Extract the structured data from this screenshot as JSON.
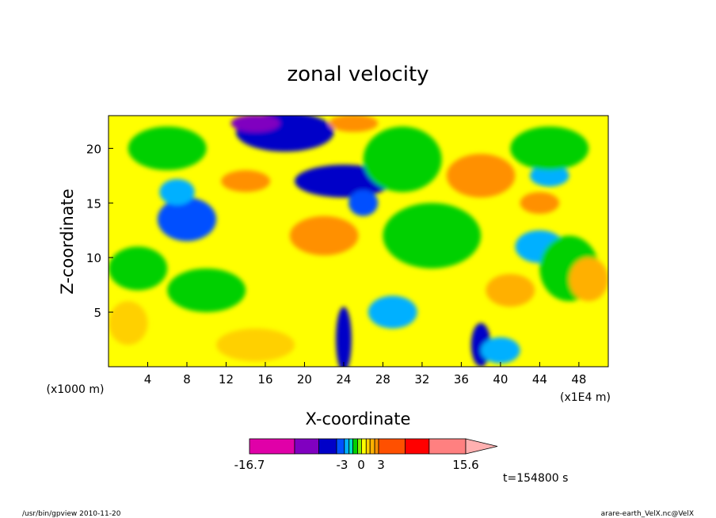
{
  "chart_data": {
    "type": "heatmap",
    "title": "zonal velocity",
    "xlabel": "X-coordinate",
    "ylabel": "Z-coordinate",
    "x_unit_label": "(x1E4 m)",
    "y_unit_label": "(x1000 m)",
    "x_ticks": [
      "4",
      "8",
      "12",
      "16",
      "20",
      "24",
      "28",
      "32",
      "36",
      "40",
      "44",
      "48"
    ],
    "y_ticks": [
      "5",
      "10",
      "15",
      "20"
    ],
    "xlim": [
      0,
      51
    ],
    "ylim": [
      0,
      23
    ],
    "colorbar": {
      "colors": [
        "#e000a8",
        "#8000c0",
        "#0000c8",
        "#0050ff",
        "#00b0ff",
        "#00e0c0",
        "#00d000",
        "#80f000",
        "#ffff00",
        "#ffd000",
        "#ffb000",
        "#ff9000",
        "#ff5000",
        "#ff0000",
        "#ff8080",
        "#ffb0b0"
      ],
      "labels": [
        "-16.7",
        "-3",
        "0",
        "3",
        "15.6"
      ]
    },
    "blobs": [
      {
        "x": 18,
        "z": 21.5,
        "rx": 5,
        "rz": 1.8,
        "c": "#0000c8"
      },
      {
        "x": 15,
        "z": 22.3,
        "rx": 2.5,
        "rz": 0.8,
        "c": "#8000c0"
      },
      {
        "x": 24,
        "z": 17,
        "rx": 5,
        "rz": 1.5,
        "c": "#0000c8"
      },
      {
        "x": 8,
        "z": 13.5,
        "rx": 3,
        "rz": 2,
        "c": "#0050ff"
      },
      {
        "x": 7,
        "z": 16,
        "rx": 1.8,
        "rz": 1.2,
        "c": "#00b0ff"
      },
      {
        "x": 26,
        "z": 15,
        "rx": 1.5,
        "rz": 1.2,
        "c": "#0050ff"
      },
      {
        "x": 29,
        "z": 5,
        "rx": 2.5,
        "rz": 1.5,
        "c": "#00b0ff"
      },
      {
        "x": 44,
        "z": 11,
        "rx": 2.5,
        "rz": 1.5,
        "c": "#00b0ff"
      },
      {
        "x": 45,
        "z": 17.5,
        "rx": 2,
        "rz": 1,
        "c": "#00b0ff"
      },
      {
        "x": 38,
        "z": 17.5,
        "rx": 3.5,
        "rz": 2,
        "c": "#ff9000"
      },
      {
        "x": 22,
        "z": 12,
        "rx": 3.5,
        "rz": 1.8,
        "c": "#ff9000"
      },
      {
        "x": 14,
        "z": 17,
        "rx": 2.5,
        "rz": 1,
        "c": "#ff9000"
      },
      {
        "x": 25,
        "z": 22.3,
        "rx": 2.5,
        "rz": 0.8,
        "c": "#ff9000"
      },
      {
        "x": 41,
        "z": 7,
        "rx": 2.5,
        "rz": 1.5,
        "c": "#ffb000"
      },
      {
        "x": 44,
        "z": 15,
        "rx": 2,
        "rz": 1,
        "c": "#ff9000"
      },
      {
        "x": 24,
        "z": 2.5,
        "rx": 0.8,
        "rz": 3,
        "c": "#0000c8"
      },
      {
        "x": 38,
        "z": 2,
        "rx": 1,
        "rz": 2,
        "c": "#0000c8"
      },
      {
        "x": 40,
        "z": 1.5,
        "rx": 2,
        "rz": 1.2,
        "c": "#00b0ff"
      },
      {
        "x": 3,
        "z": 9,
        "rx": 3,
        "rz": 2,
        "c": "#00d000"
      },
      {
        "x": 10,
        "z": 7,
        "rx": 4,
        "rz": 2,
        "c": "#00d000"
      },
      {
        "x": 33,
        "z": 12,
        "rx": 5,
        "rz": 3,
        "c": "#00d000"
      },
      {
        "x": 47,
        "z": 9,
        "rx": 3,
        "rz": 3,
        "c": "#00d000"
      },
      {
        "x": 6,
        "z": 20,
        "rx": 4,
        "rz": 2,
        "c": "#00d000"
      },
      {
        "x": 30,
        "z": 19,
        "rx": 4,
        "rz": 3,
        "c": "#00d000"
      },
      {
        "x": 45,
        "z": 20,
        "rx": 4,
        "rz": 2,
        "c": "#00d000"
      },
      {
        "x": 2,
        "z": 4,
        "rx": 2,
        "rz": 2,
        "c": "#ffd000"
      },
      {
        "x": 15,
        "z": 2,
        "rx": 4,
        "rz": 1.5,
        "c": "#ffd000"
      },
      {
        "x": 49,
        "z": 8,
        "rx": 2,
        "rz": 2,
        "c": "#ffb000"
      }
    ]
  },
  "info": {
    "time": "t=154800 s",
    "footer_left": "/usr/bin/gpview   2010-11-20",
    "footer_right": "arare-earth_VelX.nc@VelX"
  }
}
